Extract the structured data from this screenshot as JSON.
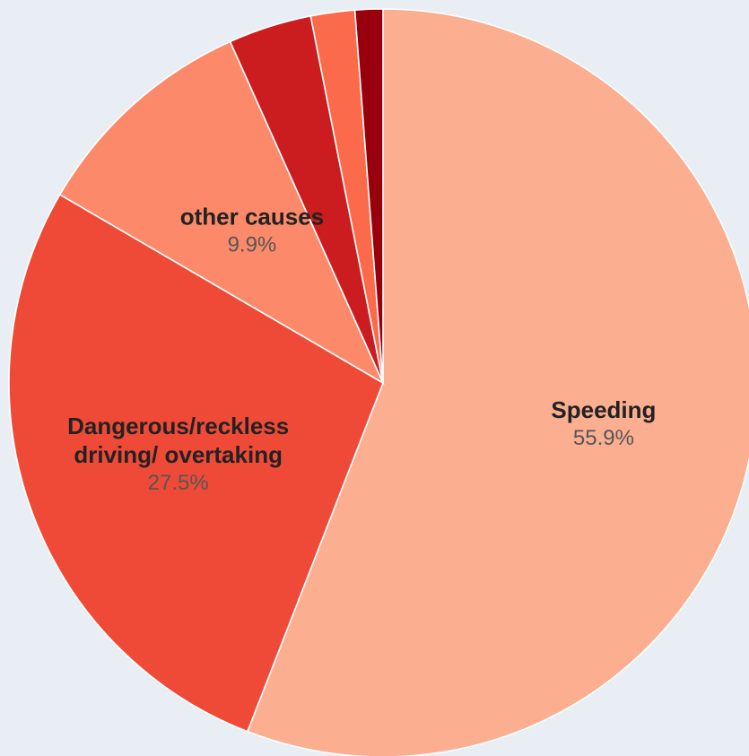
{
  "chart_data": {
    "type": "pie",
    "slices": [
      {
        "label": "Speeding",
        "value": 55.9,
        "value_label": "55.9%",
        "color": "#fcae91"
      },
      {
        "label": "Dangerous/reckless driving/ overtaking",
        "label_lines": [
          "Dangerous/reckless",
          "driving/ overtaking"
        ],
        "value": 27.5,
        "value_label": "27.5%",
        "color": "#ef4a37"
      },
      {
        "label": "other causes",
        "value": 9.9,
        "value_label": "9.9%",
        "color": "#fc8a6a"
      },
      {
        "label": "",
        "value": 3.6,
        "value_label": "",
        "color": "#cb1d1f"
      },
      {
        "label": "",
        "value": 1.9,
        "value_label": "",
        "color": "#fb6a4a"
      },
      {
        "label": "",
        "value": 1.2,
        "value_label": "",
        "color": "#99000d"
      }
    ],
    "start": "12 o'clock",
    "direction": "clockwise",
    "legend": "none"
  },
  "background": "#e9eef4"
}
